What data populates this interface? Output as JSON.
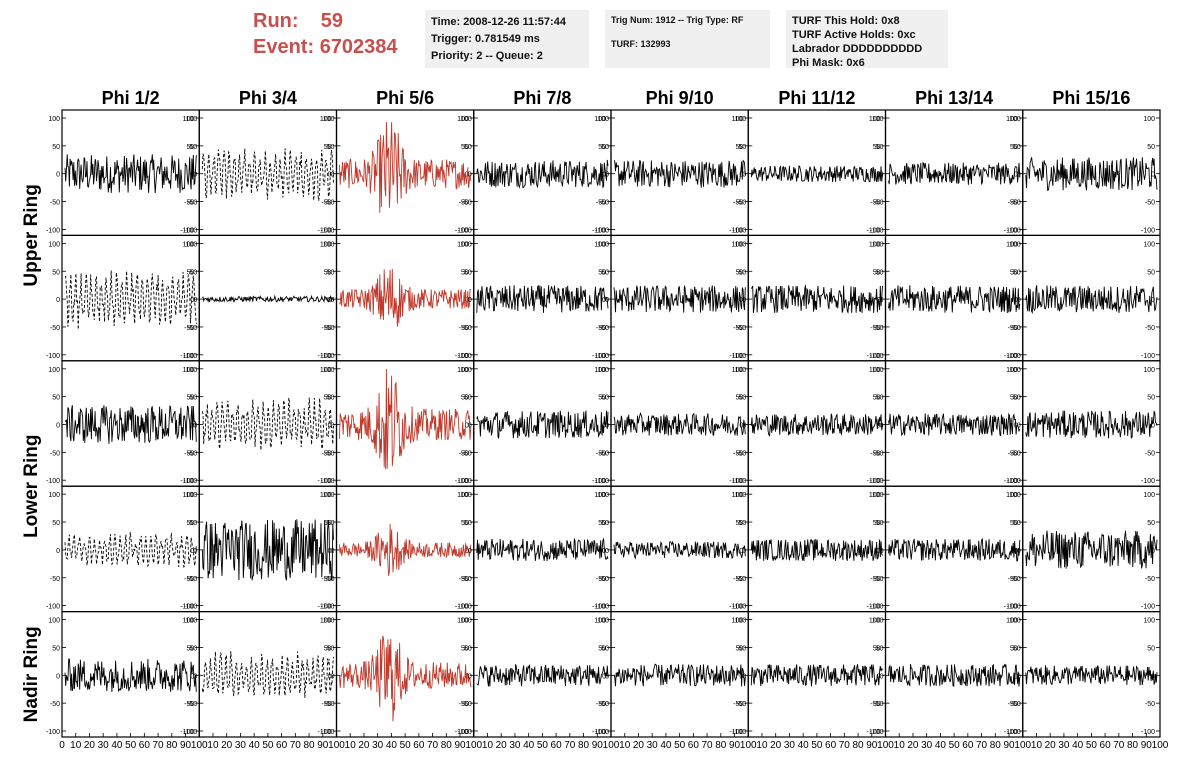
{
  "header": {
    "run_label": "Run:",
    "run_value": "59",
    "event_label": "Event:",
    "event_value": "6702384"
  },
  "info_box_1": {
    "time": "Time: 2008-12-26 11:57:44",
    "trigger": "Trigger: 0.781549 ms",
    "priority": "Priority: 2 -- Queue: 2"
  },
  "info_box_2": {
    "trig": "Trig Num: 1912 -- Trig Type: RF",
    "turf": "TURF: 132993"
  },
  "info_box_3": {
    "this_hold": "TURF This Hold: 0x8",
    "active_holds": "TURF Active Holds: 0xc",
    "labrador": "Labrador DDDDDDDDDD",
    "phi_mask": "Phi Mask: 0x6"
  },
  "chart_data": {
    "type": "line",
    "columns": [
      "Phi 1/2",
      "Phi 3/4",
      "Phi 5/6",
      "Phi 7/8",
      "Phi 9/10",
      "Phi 11/12",
      "Phi 13/14",
      "Phi 15/16"
    ],
    "ring_labels": [
      "Upper Ring",
      "Lower Ring",
      "Nadir Ring"
    ],
    "rows": 5,
    "ylim": [
      -100,
      100
    ],
    "yticks": [
      -100,
      -50,
      0,
      50,
      100
    ],
    "xlim": [
      0,
      100
    ],
    "xticks": [
      0,
      10,
      20,
      30,
      40,
      50,
      60,
      70,
      80,
      90,
      100
    ],
    "highlight_color": "#c0392b",
    "normal_color": "#000000",
    "panel_styles": [
      [
        "solid",
        "dashed",
        "red",
        "solid",
        "solid",
        "solid",
        "solid",
        "solid"
      ],
      [
        "dashed",
        "solid",
        "red",
        "solid",
        "solid",
        "solid",
        "solid",
        "solid"
      ],
      [
        "solid",
        "dashed",
        "red",
        "solid",
        "solid",
        "solid",
        "solid",
        "solid"
      ],
      [
        "dashed",
        "solid",
        "red",
        "solid",
        "solid",
        "solid",
        "solid",
        "solid"
      ],
      [
        "solid",
        "dashed",
        "red",
        "solid",
        "solid",
        "solid",
        "solid",
        "solid"
      ]
    ],
    "panel_amplitudes": [
      [
        35,
        45,
        90,
        25,
        25,
        15,
        20,
        30
      ],
      [
        50,
        5,
        60,
        25,
        25,
        25,
        25,
        25
      ],
      [
        35,
        45,
        95,
        25,
        20,
        20,
        20,
        25
      ],
      [
        30,
        55,
        45,
        20,
        15,
        20,
        20,
        35
      ],
      [
        30,
        40,
        80,
        20,
        20,
        20,
        20,
        18
      ]
    ]
  }
}
